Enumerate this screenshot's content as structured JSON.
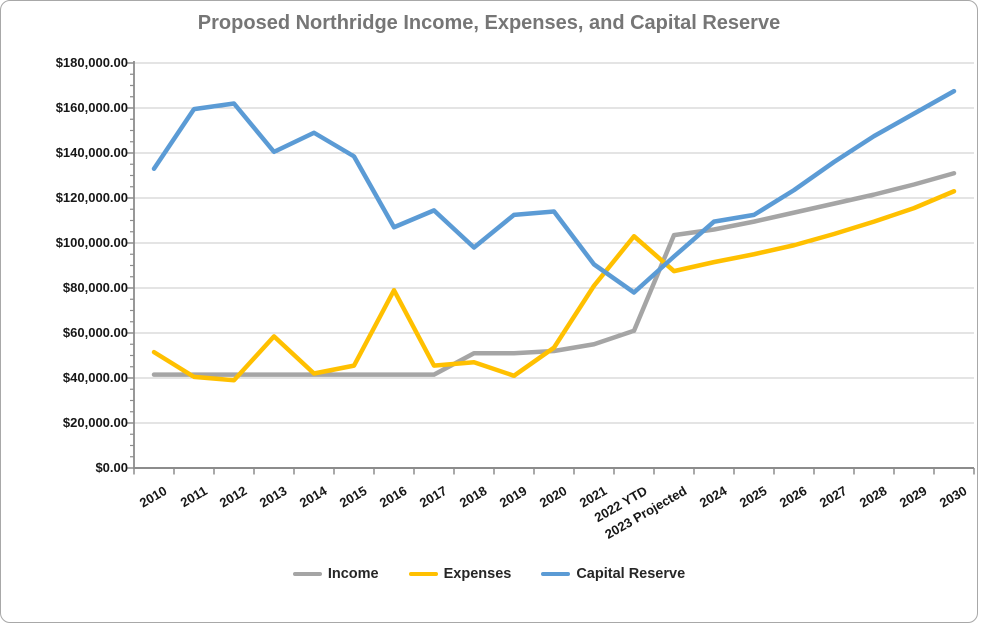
{
  "chart_data": {
    "type": "line",
    "title": "Proposed Northridge Income, Expenses, and Capital Reserve",
    "categories": [
      "2010",
      "2011",
      "2012",
      "2013",
      "2014",
      "2015",
      "2016",
      "2017",
      "2018",
      "2019",
      "2020",
      "2021",
      "2022 YTD",
      "2023 Projected",
      "2024",
      "2025",
      "2026",
      "2027",
      "2028",
      "2029",
      "2030"
    ],
    "series": [
      {
        "name": "Income",
        "color": "#A5A5A5",
        "values": [
          41500,
          41500,
          41500,
          41500,
          41500,
          41500,
          41500,
          41500,
          51000,
          51000,
          52000,
          55000,
          61000,
          103500,
          106000,
          109500,
          113500,
          117500,
          121500,
          126000,
          131000
        ]
      },
      {
        "name": "Expenses",
        "color": "#FFC000",
        "values": [
          51500,
          40500,
          39000,
          58500,
          42000,
          45500,
          79000,
          45500,
          47000,
          41000,
          53500,
          81000,
          103000,
          87500,
          91500,
          95000,
          99000,
          104000,
          109500,
          115500,
          123000
        ]
      },
      {
        "name": "Capital Reserve",
        "color": "#5B9BD5",
        "values": [
          133000,
          159500,
          162000,
          140500,
          149000,
          138500,
          107000,
          114500,
          98000,
          112500,
          114000,
          90500,
          78000,
          94000,
          109500,
          112500,
          123500,
          136000,
          147500,
          157500,
          167500
        ]
      }
    ],
    "xlabel": "",
    "ylabel": "",
    "ylim": [
      0,
      180000
    ],
    "y_major_step": 20000,
    "y_minor_step": 5000,
    "y_tick_labels": [
      "$0.00",
      "$20,000.00",
      "$40,000.00",
      "$60,000.00",
      "$80,000.00",
      "$100,000.00",
      "$120,000.00",
      "$140,000.00",
      "$160,000.00",
      "$180,000.00"
    ],
    "grid": true,
    "legend_position": "bottom",
    "x_label_rotation_deg": -30,
    "colors": {
      "title": "#767676",
      "axis": "#8C8C8C",
      "gridline": "#C9C9C9",
      "tick_text": "#171717"
    }
  }
}
